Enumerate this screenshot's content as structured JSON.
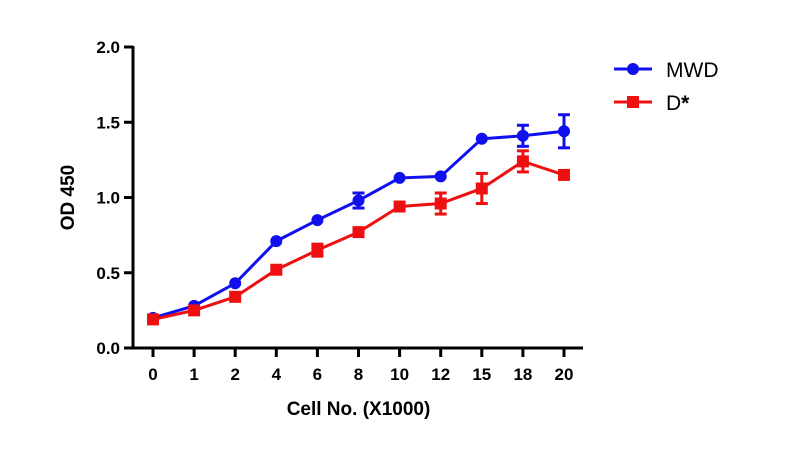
{
  "chart_data": {
    "type": "line",
    "title": "",
    "xlabel": "Cell No. (X1000)",
    "ylabel": "OD 450",
    "categories": [
      "0",
      "1",
      "2",
      "4",
      "6",
      "8",
      "10",
      "12",
      "15",
      "18",
      "20"
    ],
    "ylim": [
      0,
      2.0
    ],
    "yticks": [
      "0.0",
      "0.5",
      "1.0",
      "1.5",
      "2.0"
    ],
    "legend_position": "top-right",
    "grid": false,
    "series": [
      {
        "name": "MWD",
        "color": "#1010ee",
        "marker": "circle",
        "values": [
          0.2,
          0.28,
          0.43,
          0.71,
          0.85,
          0.98,
          1.13,
          1.14,
          1.39,
          1.41,
          1.44
        ],
        "errors": [
          0.01,
          0.01,
          0.01,
          0.01,
          0.01,
          0.05,
          0.01,
          0.01,
          0.01,
          0.07,
          0.11
        ]
      },
      {
        "name": "D",
        "name_suffix": "*",
        "color": "#ee1010",
        "marker": "square",
        "values": [
          0.19,
          0.25,
          0.34,
          0.52,
          0.65,
          0.77,
          0.94,
          0.96,
          1.06,
          1.24,
          1.15
        ],
        "errors": [
          0.01,
          0.01,
          0.01,
          0.01,
          0.04,
          0.01,
          0.01,
          0.07,
          0.1,
          0.07,
          0.01
        ]
      }
    ]
  }
}
